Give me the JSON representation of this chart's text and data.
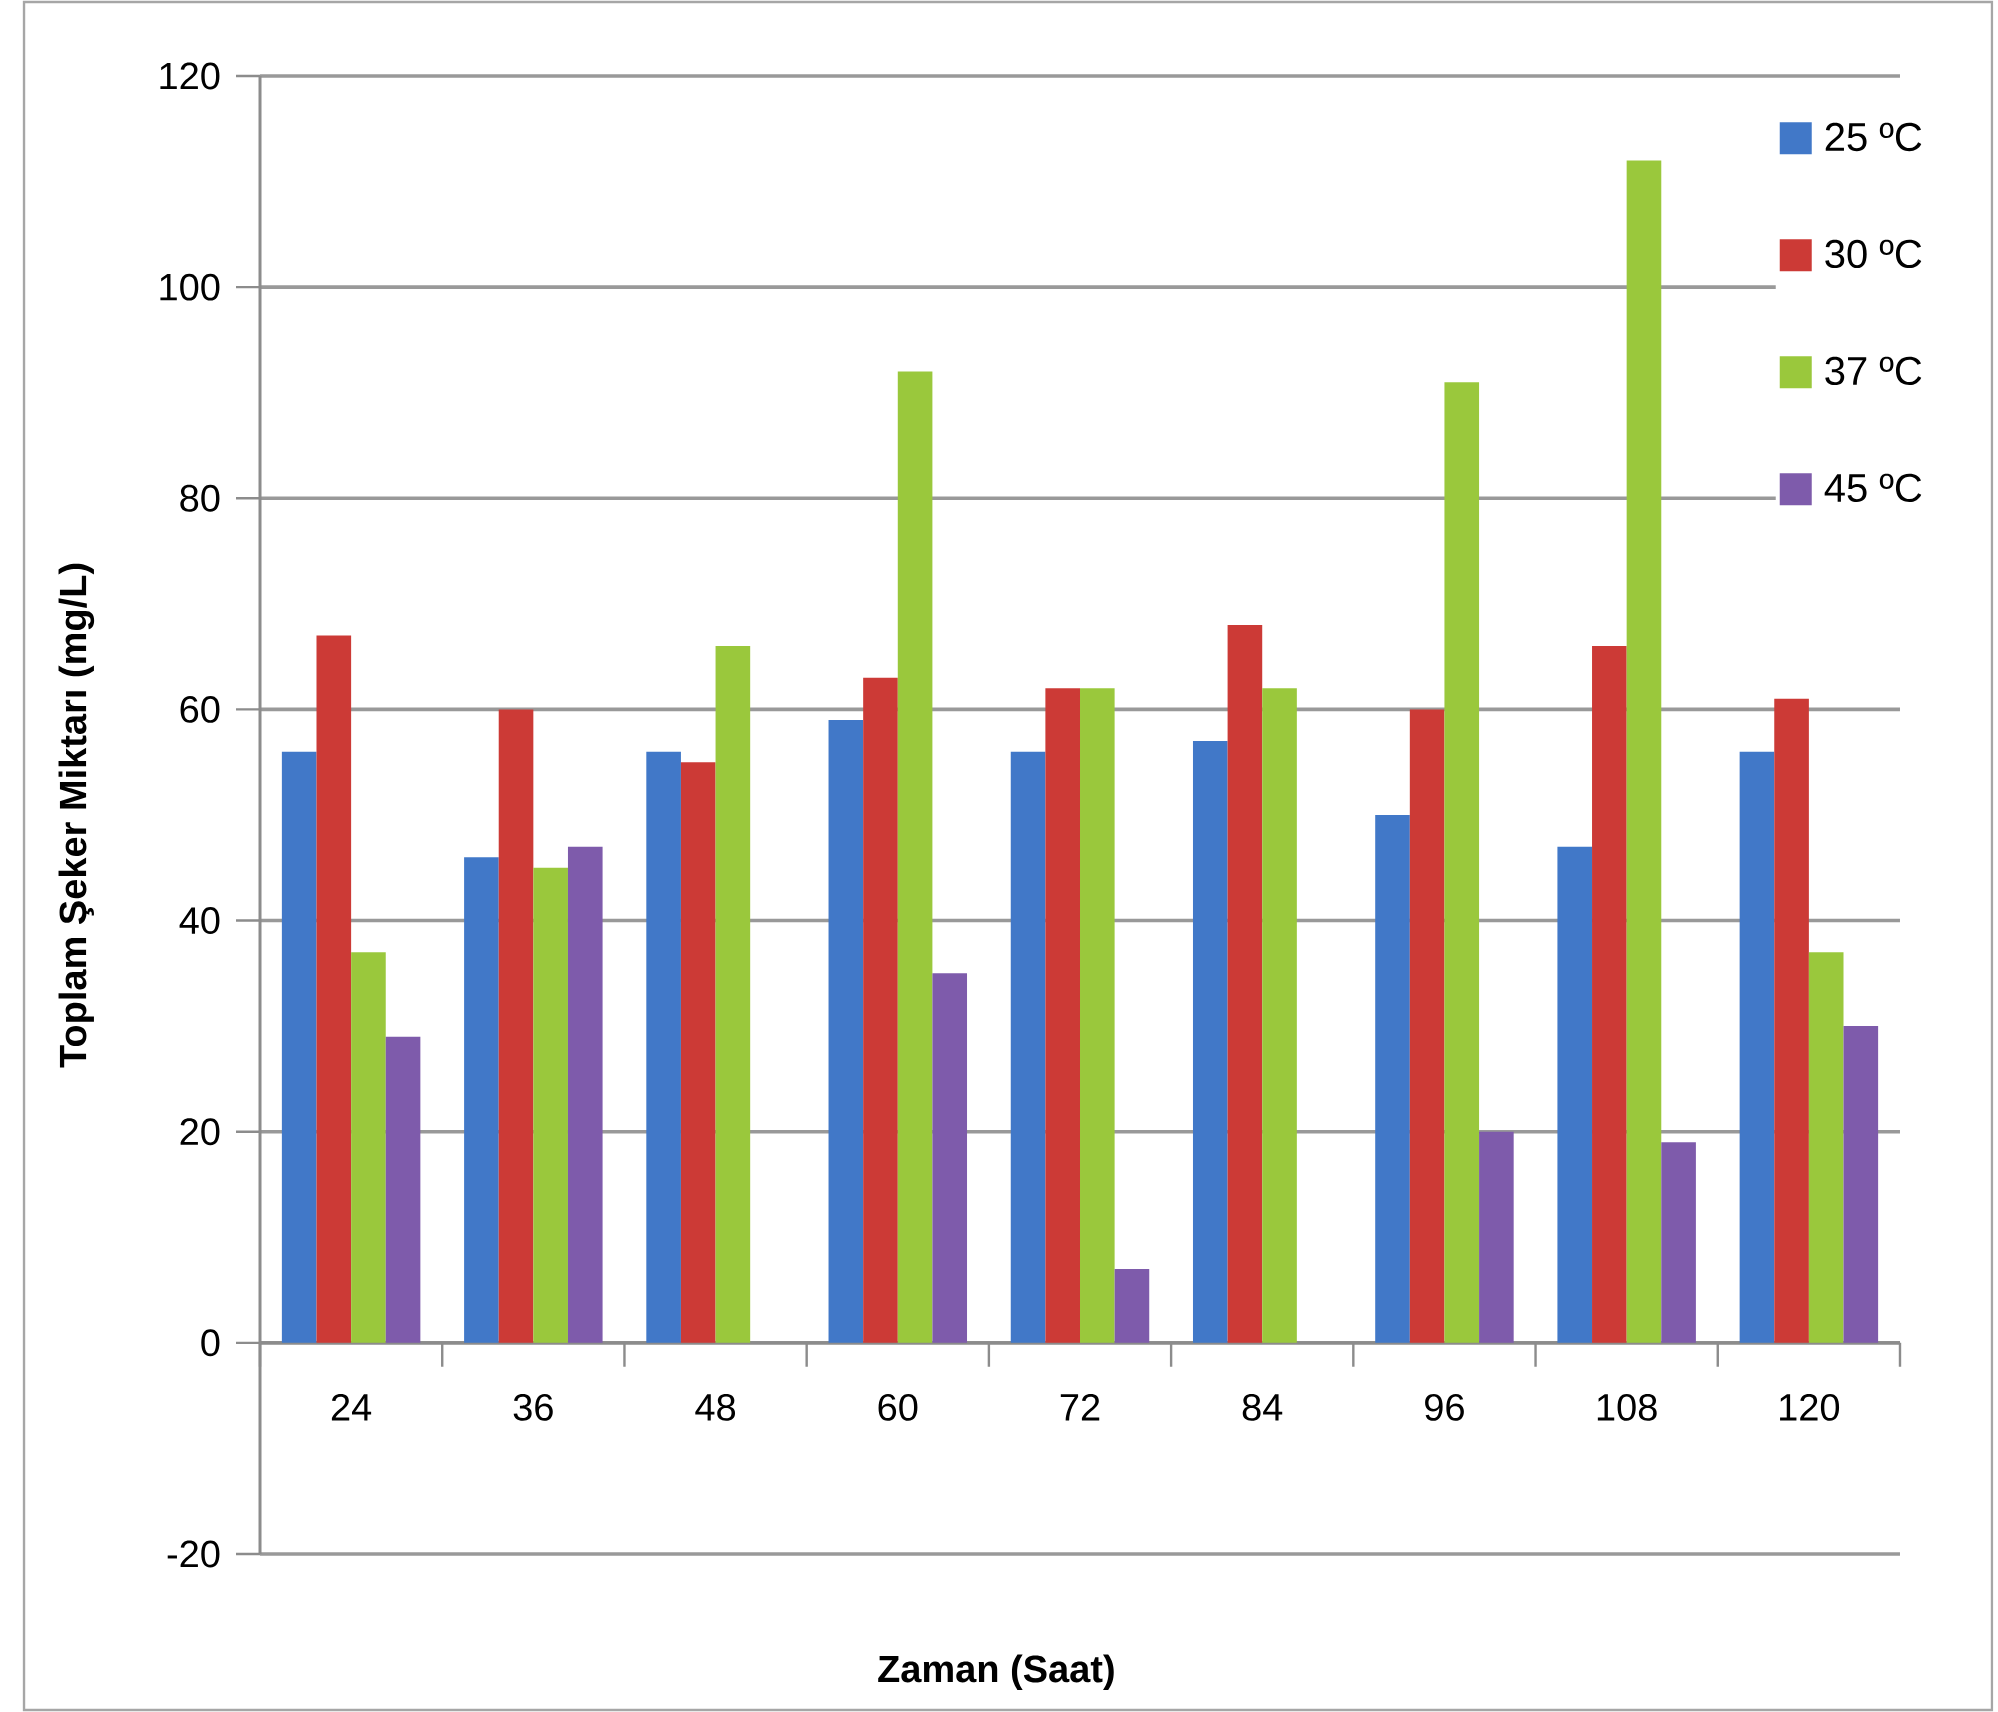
{
  "chart_data": {
    "type": "bar",
    "xlabel": "Zaman (Saat)",
    "ylabel": "Toplam Şeker Miktarı (mg/L)",
    "categories": [
      "24",
      "36",
      "48",
      "60",
      "72",
      "84",
      "96",
      "108",
      "120"
    ],
    "series": [
      {
        "name": "25 ºC",
        "color": "#4178c8",
        "values": [
          56,
          46,
          56,
          59,
          56,
          57,
          50,
          47,
          56
        ]
      },
      {
        "name": "30 ºC",
        "color": "#cc3a36",
        "values": [
          67,
          60,
          55,
          63,
          62,
          68,
          60,
          66,
          61
        ]
      },
      {
        "name": "37 ºC",
        "color": "#9ac83c",
        "values": [
          37,
          45,
          66,
          92,
          62,
          62,
          91,
          112,
          37
        ]
      },
      {
        "name": "45 ºC",
        "color": "#7e5bab",
        "values": [
          29,
          47,
          0,
          35,
          7,
          0,
          20,
          19,
          30
        ]
      }
    ],
    "ylim": [
      -20,
      120
    ],
    "yticks": [
      -20,
      0,
      20,
      40,
      60,
      80,
      100,
      120
    ],
    "grid": "y",
    "legend": "top right"
  }
}
